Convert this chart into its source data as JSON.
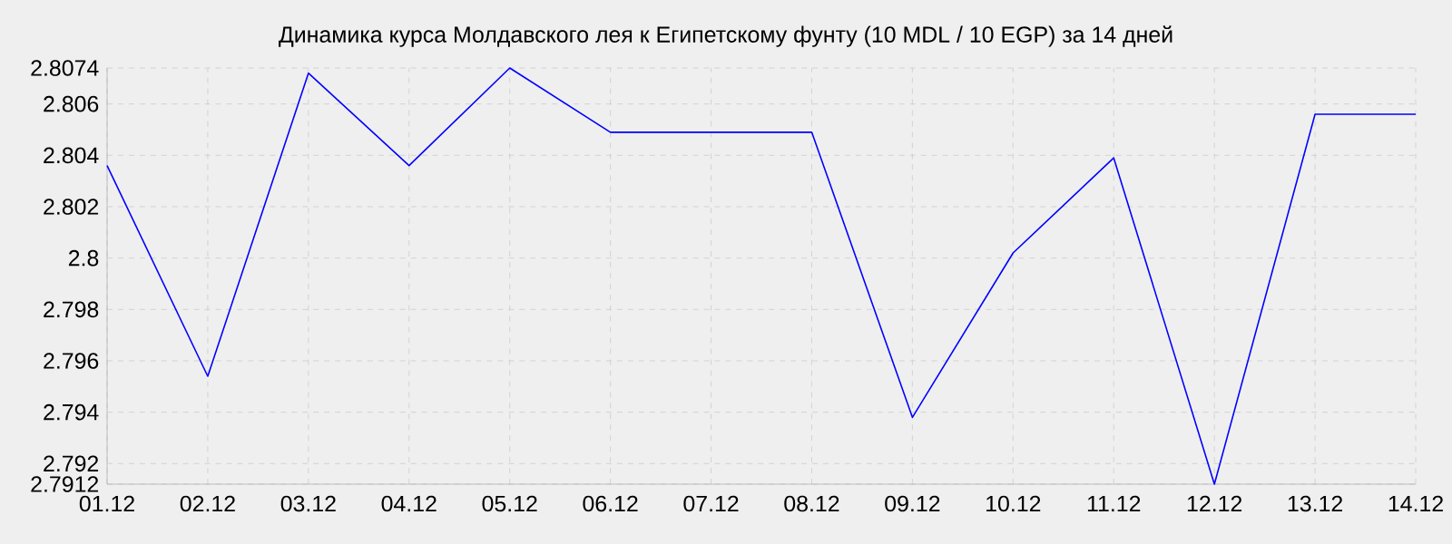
{
  "chart_data": {
    "type": "line",
    "title": "Динамика курса Молдавского лея к Египетскому фунту (10 MDL / 10 EGP) за 14 дней",
    "categories": [
      "01.12",
      "02.12",
      "03.12",
      "04.12",
      "05.12",
      "06.12",
      "07.12",
      "08.12",
      "09.12",
      "10.12",
      "11.12",
      "12.12",
      "13.12",
      "14.12"
    ],
    "series": [
      {
        "color": "#0000ff",
        "values": [
          2.8036,
          2.7954,
          2.8072,
          2.8036,
          2.8074,
          2.8049,
          2.8049,
          2.8049,
          2.7938,
          2.8002,
          2.8039,
          2.7912,
          2.8056,
          2.8056
        ]
      }
    ],
    "ylim": [
      2.7912,
      2.8074
    ],
    "yticks": [
      2.7912,
      2.792,
      2.794,
      2.796,
      2.798,
      2.8,
      2.802,
      2.804,
      2.806,
      2.8074
    ],
    "grid": true,
    "marker": "none",
    "line_style": "solid"
  }
}
